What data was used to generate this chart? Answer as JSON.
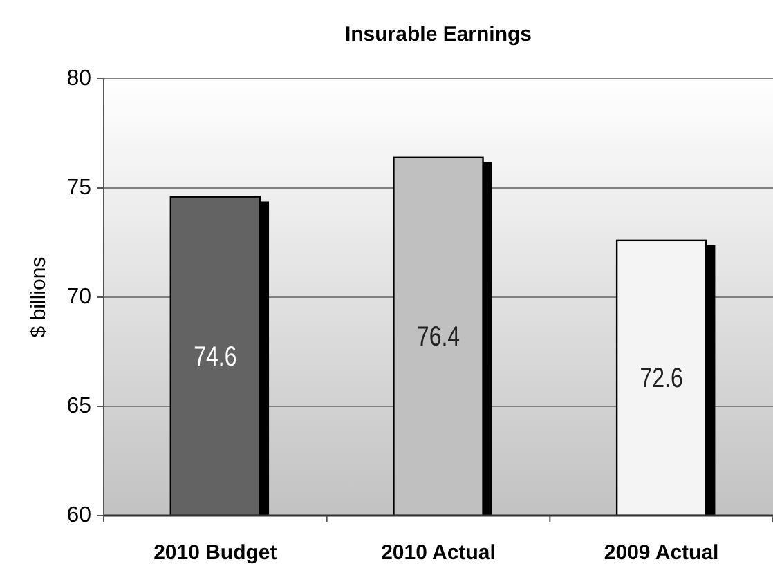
{
  "chart_data": {
    "type": "bar",
    "title": "Insurable Earnings",
    "ylabel": "$ billions",
    "categories": [
      "2010 Budget",
      "2010 Actual",
      "2009 Actual"
    ],
    "values": [
      74.6,
      76.4,
      72.6
    ],
    "colors": [
      "#646464",
      "#c0c0c0",
      "#f4f4f4"
    ],
    "ylim": [
      60,
      80
    ],
    "yticks": [
      60,
      65,
      70,
      75,
      80
    ],
    "grid": "y",
    "data_labels": true
  }
}
